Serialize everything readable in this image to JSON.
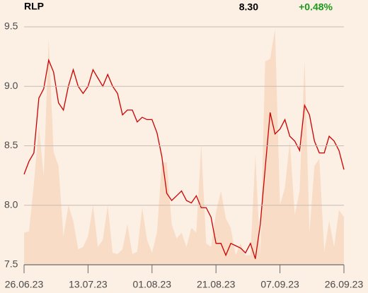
{
  "chart_data": {
    "type": "line",
    "title": "RLP",
    "price_label": "8.30",
    "change_label": "+0.48%",
    "change_color": "#1a9a1a",
    "categories": [
      "26.06.23",
      null,
      null,
      null,
      null,
      null,
      null,
      null,
      null,
      null,
      null,
      null,
      null,
      "13.07.23",
      null,
      null,
      null,
      null,
      null,
      null,
      null,
      null,
      null,
      null,
      null,
      null,
      "01.08.23",
      null,
      null,
      null,
      null,
      null,
      null,
      null,
      null,
      null,
      null,
      null,
      null,
      "21.08.23",
      null,
      null,
      null,
      null,
      null,
      null,
      null,
      null,
      null,
      null,
      null,
      null,
      "07.09.23",
      null,
      null,
      null,
      null,
      null,
      null,
      null,
      null,
      null,
      null,
      null,
      null,
      "26.09.23"
    ],
    "series": [
      {
        "style": "area",
        "color": "#f8dcc6",
        "values": [
          7.77,
          7.78,
          8.18,
          8.66,
          8.24,
          9.4,
          8.45,
          8.33,
          7.74,
          8.0,
          7.87,
          7.63,
          7.65,
          7.74,
          8.0,
          7.65,
          7.71,
          8.0,
          7.6,
          7.59,
          7.63,
          7.84,
          7.59,
          7.61,
          7.98,
          7.71,
          7.6,
          7.77,
          8.36,
          8.36,
          7.84,
          7.72,
          7.77,
          7.65,
          7.81,
          7.77,
          8.51,
          7.68,
          7.65,
          7.94,
          8.12,
          7.89,
          7.81,
          7.58,
          7.68,
          7.58,
          7.58,
          8.42,
          7.58,
          9.21,
          9.23,
          9.48,
          8.0,
          8.15,
          8.54,
          7.92,
          8.12,
          9.22,
          7.77,
          8.33,
          8.39,
          7.61,
          7.87,
          7.65,
          7.96,
          7.9
        ]
      },
      {
        "style": "line",
        "color": "#cc0000",
        "values": [
          8.26,
          8.37,
          8.44,
          8.9,
          8.98,
          9.22,
          9.12,
          8.86,
          8.8,
          9.0,
          9.14,
          9.0,
          8.94,
          9.0,
          9.14,
          9.07,
          9.0,
          9.1,
          9.0,
          8.94,
          8.76,
          8.8,
          8.8,
          8.7,
          8.74,
          8.72,
          8.72,
          8.61,
          8.41,
          8.1,
          8.04,
          8.08,
          8.12,
          8.04,
          8.02,
          8.08,
          7.98,
          7.98,
          7.9,
          7.68,
          7.68,
          7.58,
          7.68,
          7.66,
          7.64,
          7.6,
          7.68,
          7.55,
          7.84,
          8.31,
          8.78,
          8.6,
          8.64,
          8.72,
          8.58,
          8.54,
          8.46,
          8.84,
          8.76,
          8.54,
          8.44,
          8.44,
          8.58,
          8.54,
          8.46,
          8.3
        ]
      }
    ],
    "ylim": [
      7.5,
      9.5
    ],
    "yticks": [
      9.5,
      {
        "value": 9,
        "label": "9.0"
      },
      8.5,
      {
        "value": 8,
        "label": "8.0"
      },
      7.5
    ],
    "grid": true
  }
}
